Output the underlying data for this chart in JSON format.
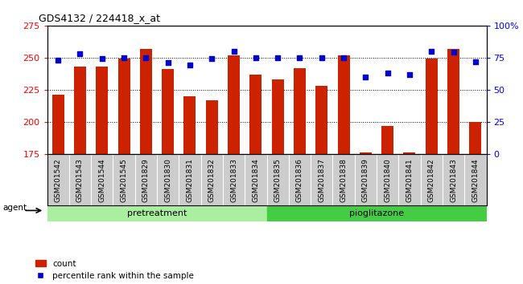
{
  "title": "GDS4132 / 224418_x_at",
  "samples": [
    "GSM201542",
    "GSM201543",
    "GSM201544",
    "GSM201545",
    "GSM201829",
    "GSM201830",
    "GSM201831",
    "GSM201832",
    "GSM201833",
    "GSM201834",
    "GSM201835",
    "GSM201836",
    "GSM201837",
    "GSM201838",
    "GSM201839",
    "GSM201840",
    "GSM201841",
    "GSM201842",
    "GSM201843",
    "GSM201844"
  ],
  "counts": [
    221,
    243,
    243,
    249,
    257,
    241,
    220,
    217,
    252,
    237,
    233,
    242,
    228,
    252,
    176,
    197,
    176,
    249,
    257,
    200
  ],
  "percentile": [
    73,
    78,
    74,
    75,
    75,
    71,
    69,
    74,
    80,
    75,
    75,
    75,
    75,
    75,
    60,
    63,
    62,
    80,
    79,
    72
  ],
  "pretreatment_count": 10,
  "pioglitazone_count": 10,
  "bar_color": "#cc2200",
  "dot_color": "#0000cc",
  "ylim_left": [
    175,
    275
  ],
  "ylim_right": [
    0,
    100
  ],
  "yticks_left": [
    175,
    200,
    225,
    250,
    275
  ],
  "yticks_right": [
    0,
    25,
    50,
    75,
    100
  ],
  "grid_values": [
    200,
    225,
    250
  ],
  "pretreatment_label": "pretreatment",
  "pioglitazone_label": "pioglitazone",
  "agent_label": "agent",
  "legend_count": "count",
  "legend_percentile": "percentile rank within the sample",
  "pretreatment_color": "#aaeea0",
  "pioglitazone_color": "#44cc44",
  "cell_color": "#cccccc",
  "bar_width": 0.55
}
